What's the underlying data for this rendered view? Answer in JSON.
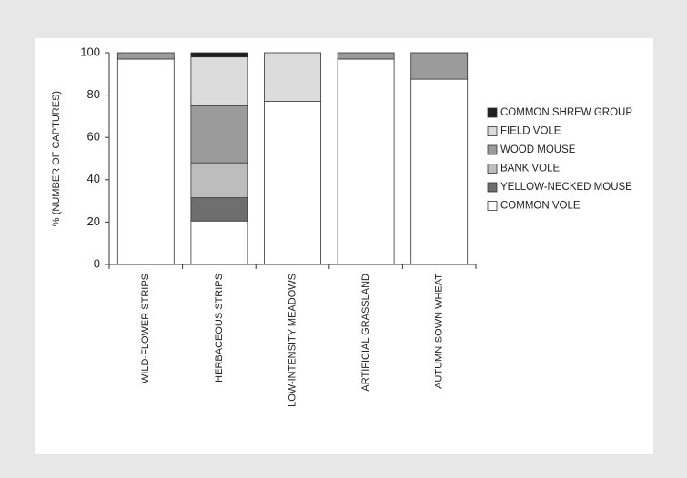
{
  "chart_data": {
    "type": "bar",
    "stacked": true,
    "title": "",
    "xlabel": "",
    "ylabel": "% (NUMBER OF CAPTURES)",
    "ylim": [
      0,
      100
    ],
    "yticks": [
      "0",
      "20",
      "40",
      "60",
      "80",
      "100"
    ],
    "categories": [
      "WILD-FLOWER STRIPS",
      "HERBACEOUS STRIPS",
      "LOW-INTENSITY MEADOWS",
      "ARTIFICIAL GRASSLAND",
      "AUTUMN-SOWN WHEAT"
    ],
    "series": [
      {
        "name": "COMMON VOLE",
        "color": "#ffffff",
        "values": [
          97,
          20.5,
          77,
          97,
          87.5
        ]
      },
      {
        "name": "YELLOW-NECKED MOUSE",
        "color": "#6e6e6e",
        "values": [
          0,
          11,
          0,
          0,
          0
        ]
      },
      {
        "name": "BANK VOLE",
        "color": "#bdbdbd",
        "values": [
          0,
          16.5,
          0,
          0,
          0
        ]
      },
      {
        "name": "WOOD MOUSE",
        "color": "#9b9b9b",
        "values": [
          3,
          27,
          0,
          3,
          12.5
        ]
      },
      {
        "name": "FIELD VOLE",
        "color": "#dcdcdc",
        "values": [
          0,
          23,
          23,
          0,
          0
        ]
      },
      {
        "name": "COMMON SHREW GROUP",
        "color": "#1e1e1e",
        "values": [
          0,
          2,
          0,
          0,
          0
        ]
      }
    ],
    "legend_order": [
      "COMMON SHREW GROUP",
      "FIELD VOLE",
      "WOOD MOUSE",
      "BANK VOLE",
      "YELLOW-NECKED MOUSE",
      "COMMON VOLE"
    ],
    "legend_position": "right",
    "grid": false
  }
}
